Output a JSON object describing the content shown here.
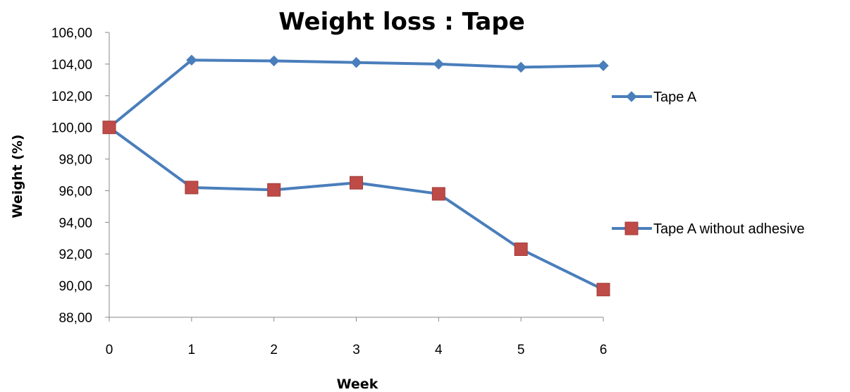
{
  "chart_data": {
    "type": "line",
    "title": "Weight loss : Tape",
    "xlabel": "Week",
    "ylabel": "Weight (%)",
    "x": [
      0,
      1,
      2,
      3,
      4,
      5,
      6
    ],
    "x_tick_labels": [
      "0",
      "1",
      "2",
      "3",
      "4",
      "5",
      "6"
    ],
    "ylim": [
      88,
      106
    ],
    "y_tick_labels": [
      "88,00",
      "90,00",
      "92,00",
      "94,00",
      "96,00",
      "98,00",
      "100,00",
      "102,00",
      "104,00",
      "106,00"
    ],
    "grid": false,
    "legend_position": "right",
    "series": [
      {
        "name": "Tape A",
        "values": [
          100.0,
          104.25,
          104.2,
          104.1,
          104.0,
          103.8,
          103.9
        ],
        "marker": "diamond",
        "color": "#4A7EBB",
        "marker_color": "#4A7EBB"
      },
      {
        "name": "Tape A without adhesive",
        "values": [
          100.0,
          96.2,
          96.05,
          96.5,
          95.8,
          92.3,
          89.75
        ],
        "marker": "square",
        "color": "#4A7EBB",
        "marker_color": "#BE4B48"
      }
    ]
  }
}
